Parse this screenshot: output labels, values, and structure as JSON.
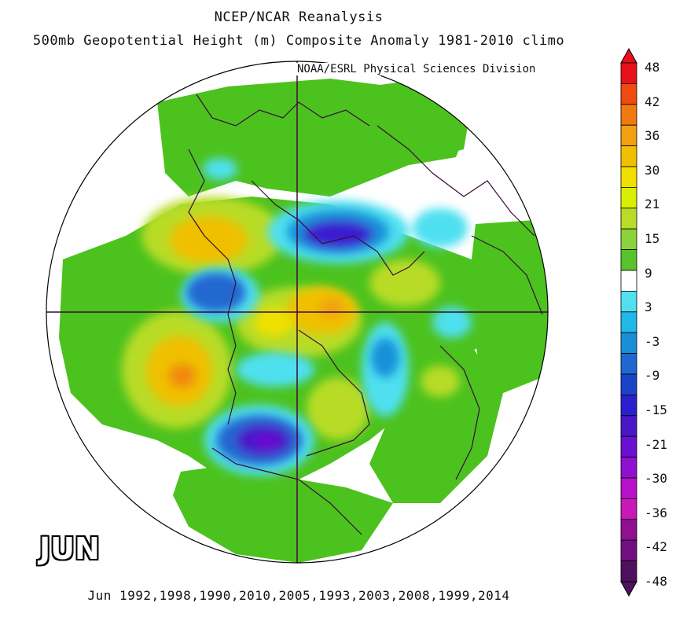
{
  "header": {
    "title_line1": "NCEP/NCAR Reanalysis",
    "title_line2": "500mb Geopotential Height (m) Composite Anomaly 1981-2010 climo",
    "credit": "NOAA/ESRL Physical Sciences Division"
  },
  "map": {
    "projection": "north-polar-stereographic",
    "month_label": "JUN",
    "years_caption": "Jun 1992,1998,1990,2010,2005,1993,2003,2008,1999,2014",
    "field": "500mb geopotential height anomaly (m)",
    "features": [
      {
        "sign": "negative",
        "peak": -30,
        "color": "#6a0fc8"
      },
      {
        "sign": "negative",
        "peak": -21,
        "color": "#3a1ad0"
      },
      {
        "sign": "positive",
        "peak": 36,
        "color": "#f08a10"
      },
      {
        "sign": "positive",
        "peak": 30,
        "color": "#f0c000"
      },
      {
        "sign": "negative",
        "peak": -15,
        "color": "#2050d0"
      },
      {
        "sign": "positive",
        "peak": 15,
        "color": "#b8dc28"
      }
    ]
  },
  "colorbar": {
    "labels": [
      "48",
      "42",
      "36",
      "30",
      "21",
      "15",
      "9",
      "3",
      "-3",
      "-9",
      "-15",
      "-21",
      "-30",
      "-36",
      "-42",
      "-48"
    ],
    "colors": [
      "#e8101a",
      "#f04a10",
      "#f07a10",
      "#f0a010",
      "#f0c000",
      "#f0e000",
      "#d8f000",
      "#b8dc28",
      "#8cd23c",
      "#58c32a",
      "#ffffff",
      "#50e0f0",
      "#20b8e8",
      "#1890d8",
      "#2068d0",
      "#1a44c8",
      "#2a20d0",
      "#4818c8",
      "#6a10d0",
      "#9010d0",
      "#b810c8",
      "#c818b8",
      "#901090",
      "#701080",
      "#501060"
    ]
  }
}
